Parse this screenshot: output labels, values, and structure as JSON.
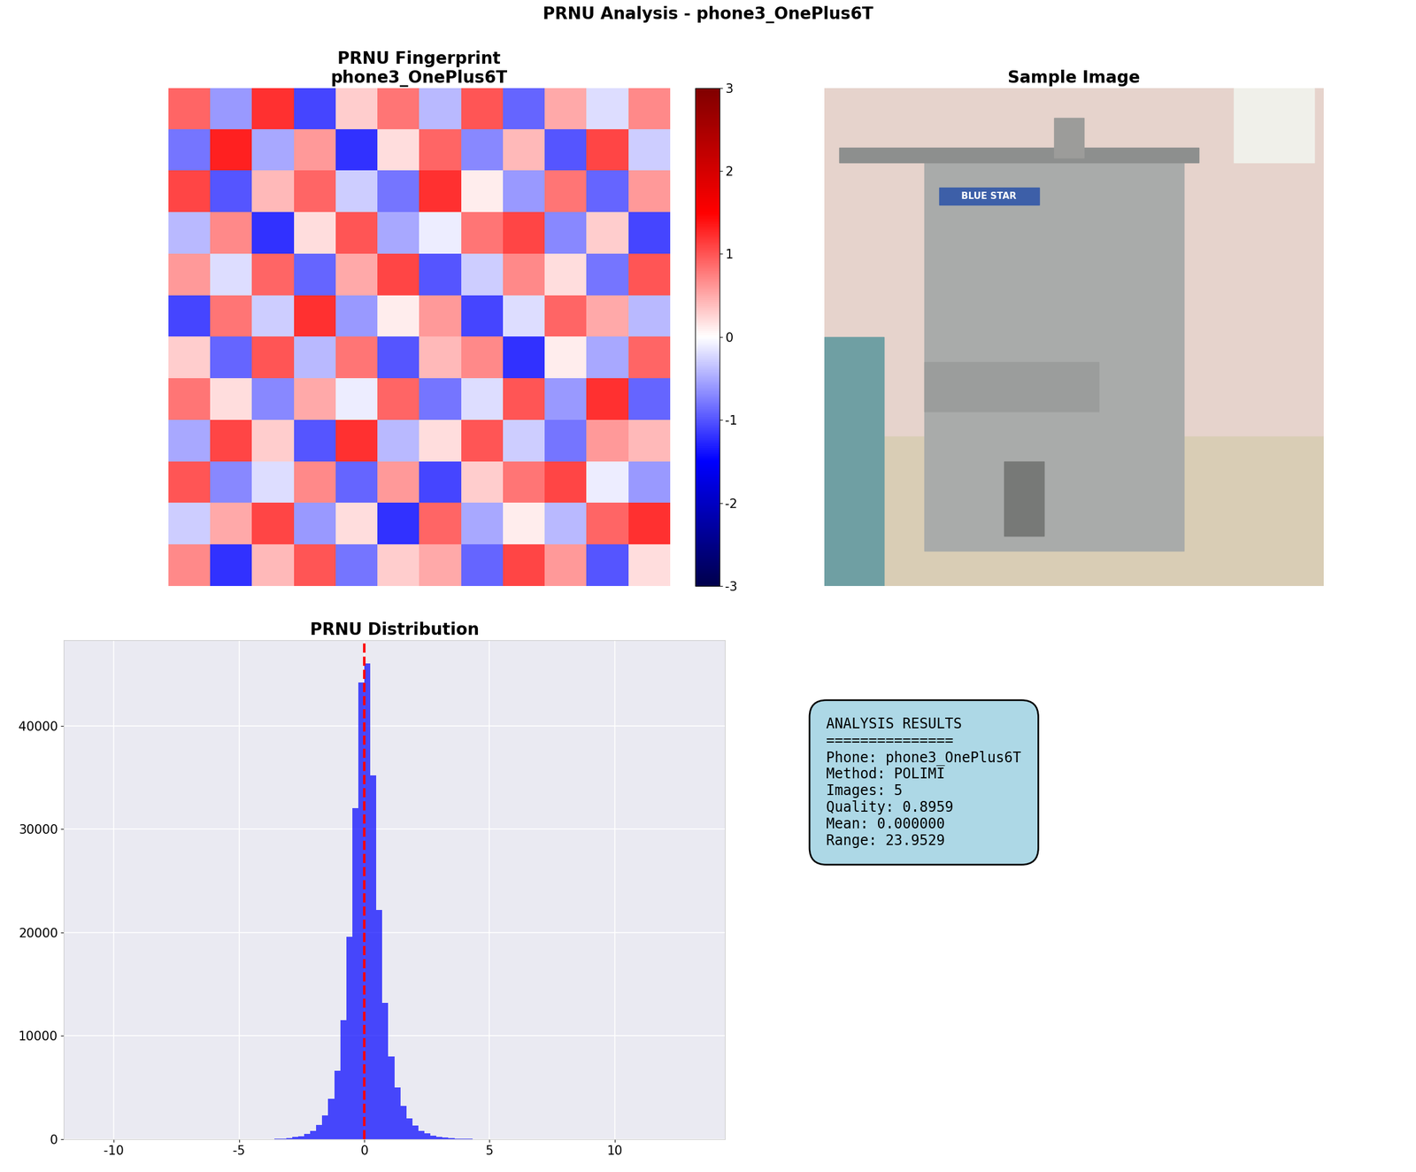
{
  "suptitle": "PRNU Analysis - phone3_OnePlus6T",
  "chart_data": [
    {
      "type": "heatmap",
      "title": "PRNU Fingerprint\nphone3_OnePlus6T",
      "color": "seismic",
      "tick_labels": false,
      "cells": [
        [
          0.9,
          -0.6,
          1.2,
          -1.1,
          0.3,
          0.8,
          -0.4,
          1.0,
          -0.9,
          0.5,
          -0.2,
          0.7
        ],
        [
          -0.8,
          1.3,
          -0.5,
          0.6,
          -1.2,
          0.2,
          0.9,
          -0.7,
          0.4,
          -1.0,
          1.1,
          -0.3
        ],
        [
          1.1,
          -1.0,
          0.4,
          0.9,
          -0.3,
          -0.8,
          1.2,
          0.1,
          -0.6,
          0.8,
          -0.9,
          0.6
        ],
        [
          -0.4,
          0.7,
          -1.2,
          0.2,
          1.0,
          -0.5,
          -0.1,
          0.8,
          1.1,
          -0.7,
          0.3,
          -1.1
        ],
        [
          0.6,
          -0.2,
          0.9,
          -0.9,
          0.5,
          1.1,
          -1.0,
          -0.3,
          0.7,
          0.2,
          -0.8,
          1.0
        ],
        [
          -1.1,
          0.8,
          -0.3,
          1.2,
          -0.6,
          0.1,
          0.6,
          -1.1,
          -0.2,
          0.9,
          0.5,
          -0.4
        ],
        [
          0.3,
          -0.9,
          1.0,
          -0.4,
          0.8,
          -1.0,
          0.4,
          0.7,
          -1.2,
          0.1,
          -0.5,
          0.9
        ],
        [
          0.8,
          0.2,
          -0.7,
          0.5,
          -0.1,
          0.9,
          -0.8,
          -0.2,
          1.0,
          -0.6,
          1.2,
          -0.9
        ],
        [
          -0.5,
          1.1,
          0.3,
          -1.0,
          1.2,
          -0.4,
          0.2,
          1.0,
          -0.3,
          -0.8,
          0.6,
          0.4
        ],
        [
          1.0,
          -0.7,
          -0.2,
          0.7,
          -0.9,
          0.6,
          -1.1,
          0.3,
          0.8,
          1.1,
          -0.1,
          -0.6
        ],
        [
          -0.3,
          0.5,
          1.1,
          -0.6,
          0.2,
          -1.2,
          0.9,
          -0.5,
          0.1,
          -0.4,
          0.9,
          1.2
        ],
        [
          0.7,
          -1.2,
          0.4,
          1.0,
          -0.8,
          0.3,
          0.5,
          -0.9,
          1.1,
          0.6,
          -1.0,
          0.2
        ]
      ],
      "colorbar_range": [
        -3,
        3
      ],
      "colorbar_ticks": [
        -3,
        -2,
        -1,
        0,
        1,
        2,
        3
      ]
    },
    {
      "type": "histogram",
      "title": "PRNU Distribution",
      "color": "blue",
      "grid": true,
      "mean": 0,
      "bins": [
        -10.8,
        -10.56,
        -10.32,
        -10.08,
        -9.84,
        -9.6,
        -9.36,
        -9.12,
        -8.88,
        -8.64,
        -8.4,
        -8.16,
        -7.92,
        -7.68,
        -7.44,
        -7.2,
        -6.96,
        -6.72,
        -6.48,
        -6.24,
        -6.0,
        -5.76,
        -5.52,
        -5.28,
        -5.04,
        -4.8,
        -4.56,
        -4.32,
        -4.08,
        -3.84,
        -3.6,
        -3.36,
        -3.12,
        -2.88,
        -2.64,
        -2.4,
        -2.16,
        -1.92,
        -1.68,
        -1.44,
        -1.2,
        -0.96,
        -0.72,
        -0.48,
        -0.24,
        0.0,
        0.24,
        0.48,
        0.72,
        0.96,
        1.2,
        1.44,
        1.68,
        1.92,
        2.16,
        2.4,
        2.64,
        2.88,
        3.12,
        3.36,
        3.6,
        3.84,
        4.08,
        4.32,
        4.56,
        4.8,
        5.04,
        5.28,
        5.52,
        5.76,
        6.0,
        6.24,
        6.48,
        6.72,
        6.96,
        7.2,
        7.44,
        7.68,
        7.92,
        8.16,
        8.4,
        8.64,
        8.88,
        9.12,
        9.36,
        9.6,
        9.84,
        10.08,
        10.32,
        10.56,
        10.8,
        11.04,
        11.28,
        11.52,
        11.76,
        12.0,
        12.24,
        12.48,
        12.72,
        12.96,
        13.2
      ],
      "counts": [
        0,
        0,
        0,
        0,
        0,
        0,
        0,
        0,
        0,
        0,
        0,
        0,
        0,
        0,
        0,
        0,
        0,
        0,
        0,
        0,
        0,
        0,
        1,
        1,
        2,
        3,
        5,
        8,
        10,
        20,
        40,
        70,
        120,
        200,
        300,
        500,
        800,
        1400,
        2300,
        3900,
        6600,
        11500,
        19600,
        32000,
        44200,
        46000,
        35200,
        22200,
        13200,
        8000,
        5000,
        3200,
        2000,
        1300,
        800,
        550,
        350,
        220,
        140,
        90,
        60,
        40,
        25,
        15,
        10,
        6,
        4,
        3,
        2,
        1,
        1,
        1,
        0,
        0,
        0,
        0,
        0,
        0,
        0,
        0,
        0,
        0,
        0,
        0,
        0,
        0,
        0,
        0,
        0,
        0,
        0,
        0,
        0,
        0,
        0,
        0,
        0,
        0,
        0,
        1
      ],
      "xlim": [
        -12,
        14.4
      ],
      "xticks": [
        -10,
        -5,
        0,
        5,
        10
      ],
      "ylim": [
        0,
        48300
      ],
      "yticks": [
        0,
        10000,
        20000,
        30000,
        40000
      ]
    }
  ],
  "sample_image": {
    "title": "Sample Image",
    "logo_text": "BLUE STAR"
  },
  "results_box": {
    "lines": [
      "ANALYSIS RESULTS",
      "===============",
      "Phone: phone3_OnePlus6T",
      "Method: POLIMI",
      "Images: 5",
      "Quality: 0.8959",
      "Mean: 0.000000",
      "Range: 23.9529"
    ]
  }
}
